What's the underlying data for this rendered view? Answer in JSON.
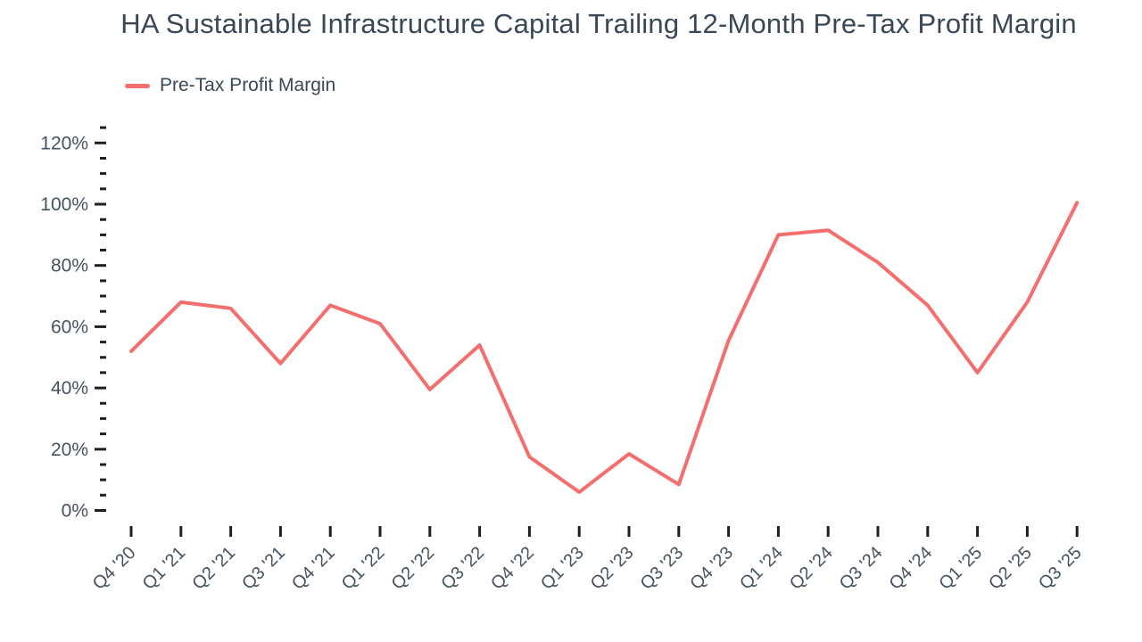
{
  "chart_data": {
    "type": "line",
    "title": "HA Sustainable Infrastructure Capital Trailing 12-Month Pre-Tax Profit Margin",
    "xlabel": "",
    "ylabel": "",
    "categories": [
      "Q4 '20",
      "Q1 '21",
      "Q2 '21",
      "Q3 '21",
      "Q4 '21",
      "Q1 '22",
      "Q2 '22",
      "Q3 '22",
      "Q4 '22",
      "Q1 '23",
      "Q2 '23",
      "Q3 '23",
      "Q4 '23",
      "Q1 '24",
      "Q2 '24",
      "Q3 '24",
      "Q4 '24",
      "Q1 '25",
      "Q2 '25",
      "Q3 '25"
    ],
    "series": [
      {
        "name": "Pre-Tax Profit Margin",
        "values": [
          52,
          68,
          66,
          48,
          67,
          61,
          39.5,
          54,
          17.5,
          6,
          18.5,
          8.5,
          55.5,
          90,
          91.5,
          81,
          67,
          45,
          68,
          100.5
        ]
      }
    ],
    "y_axis": {
      "min": 0,
      "max": 125,
      "major_step": 20,
      "minor_step": 5,
      "major_label_max": 120,
      "unit": "%",
      "tick_labels": [
        "0%",
        "20%",
        "40%",
        "60%",
        "80%",
        "100%",
        "120%"
      ]
    },
    "ylim": [
      0,
      125
    ],
    "grid": false,
    "legend_position": "top-left",
    "colors": {
      "line": "#f56e6e",
      "title_text": "#3a4757",
      "axis_text": "#46525f",
      "tick": "#1c1f24",
      "background": "#ffffff"
    }
  }
}
